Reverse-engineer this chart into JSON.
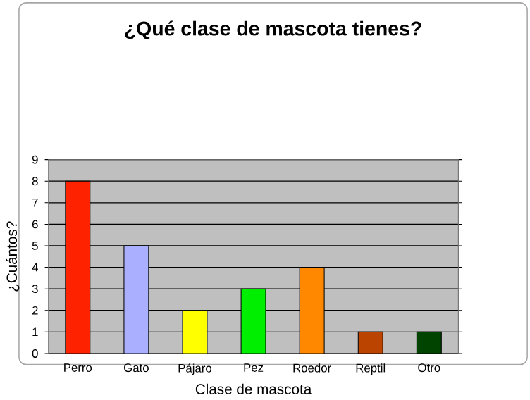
{
  "chart_data": {
    "type": "bar",
    "title": "¿Qué clase de mascota tienes?",
    "xlabel": "Clase de mascota",
    "ylabel": "¿Cuántos?",
    "categories": [
      "Perro",
      "Gato",
      "Pájaro",
      "Pez",
      "Roedor",
      "Reptil",
      "Otro"
    ],
    "values": [
      8,
      5,
      2,
      3,
      4,
      1,
      1
    ],
    "colors": [
      "#ff2200",
      "#aab0ff",
      "#ffff00",
      "#00ee00",
      "#ff8800",
      "#bb4400",
      "#004400"
    ],
    "ylim": [
      0,
      9
    ],
    "yticks": [
      0,
      1,
      2,
      3,
      4,
      5,
      6,
      7,
      8,
      9
    ],
    "grid": "y"
  }
}
